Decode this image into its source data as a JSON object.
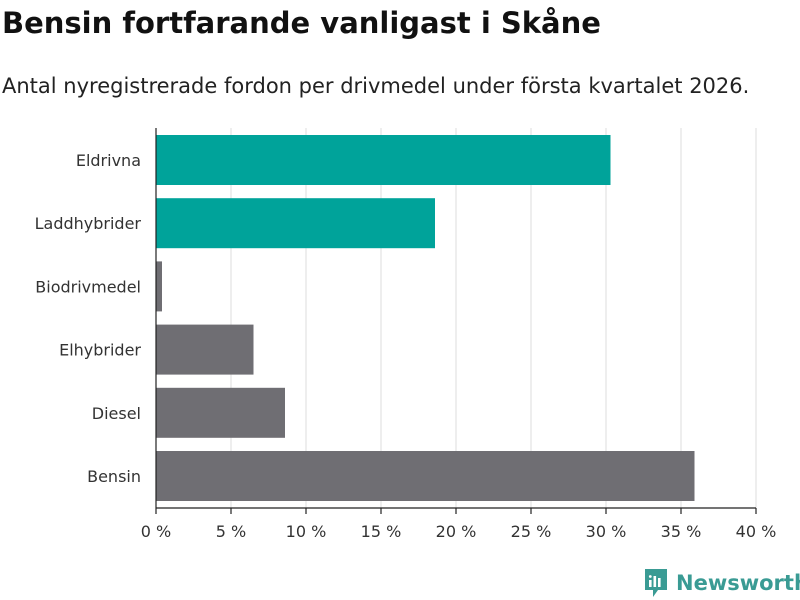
{
  "title": "Bensin fortfarande vanligast i Skåne",
  "subtitle": "Antal nyregistrerade fordon per drivmedel under första kvartalet 2026.",
  "brand": {
    "name": "Newsworthy",
    "color": "#3a9b94",
    "icon": "newsworthy-logo-icon"
  },
  "colors": {
    "highlight": "#00a39a",
    "default": "#6f6e73",
    "grid": "#dddddd"
  },
  "chart_data": {
    "type": "bar",
    "orientation": "horizontal",
    "categories": [
      "Eldrivna",
      "Laddhybrider",
      "Biodrivmedel",
      "Elhybrider",
      "Diesel",
      "Bensin"
    ],
    "values": [
      30.3,
      18.6,
      0.4,
      6.5,
      8.6,
      35.9
    ],
    "highlighted": [
      true,
      true,
      false,
      false,
      false,
      false
    ],
    "title": "Bensin fortfarande vanligast i Skåne",
    "xlabel": "",
    "ylabel": "",
    "xlim": [
      0,
      40
    ],
    "ticks": [
      0,
      5,
      10,
      15,
      20,
      25,
      30,
      35,
      40
    ],
    "tick_labels": [
      "0 %",
      "5 %",
      "10 %",
      "15 %",
      "20 %",
      "25 %",
      "30 %",
      "35 %",
      "40 %"
    ],
    "grid": true,
    "legend": "none"
  }
}
